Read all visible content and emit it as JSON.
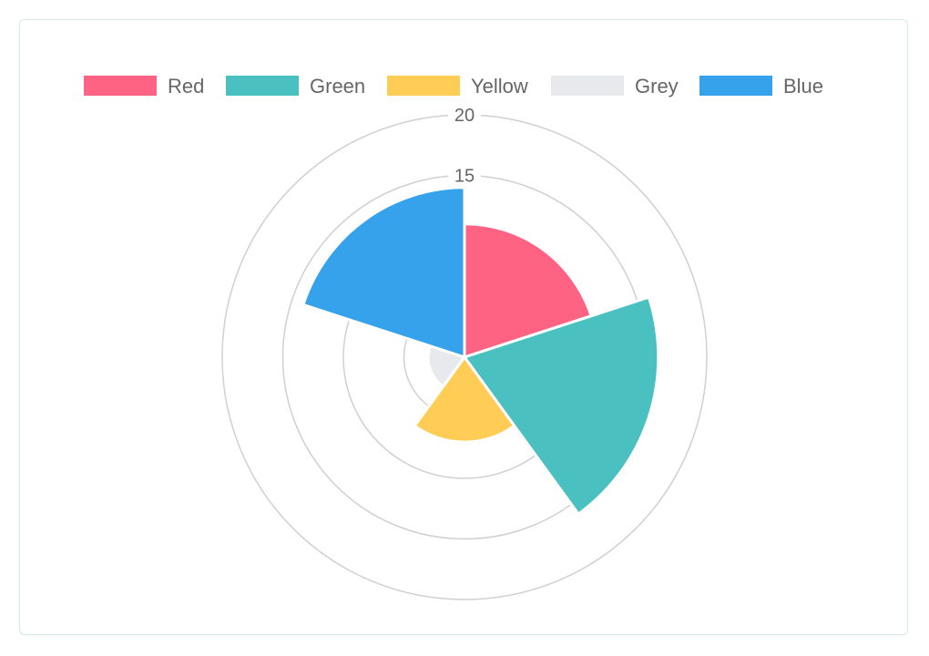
{
  "chart_data": {
    "type": "polarArea",
    "categories": [
      "Red",
      "Green",
      "Yellow",
      "Grey",
      "Blue"
    ],
    "values": [
      11,
      16,
      7,
      3,
      14
    ],
    "colors": [
      "#ff6384",
      "#4bc0c0",
      "#ffcd56",
      "#e7e9ed",
      "#36a2eb"
    ],
    "r_ticks": [
      15,
      20
    ],
    "r_grid": [
      5,
      10,
      15,
      20
    ],
    "r_max": 20,
    "legend_position": "top",
    "grid": true
  }
}
